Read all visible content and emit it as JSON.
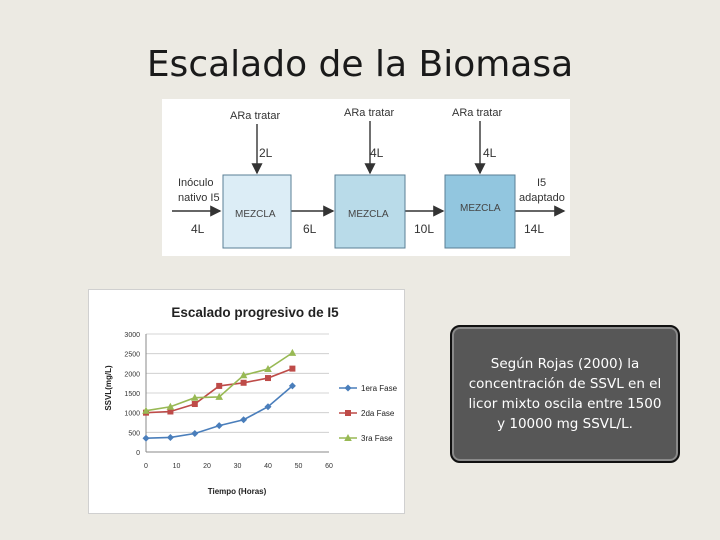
{
  "slide": {
    "title": "Escalado de la Biomasa"
  },
  "diagram": {
    "inputs": [
      {
        "label": "ARa tratar",
        "volume": "2L"
      },
      {
        "label": "ARa tratar",
        "volume": "4L"
      },
      {
        "label": "ARa tratar",
        "volume": "4L"
      }
    ],
    "left_label_line1": "Inóculo",
    "left_label_line2": "nativo I5",
    "right_label_line1": "I5",
    "right_label_line2": "adaptado",
    "boxes": [
      "MEZCLA",
      "MEZCLA",
      "MEZCLA"
    ],
    "box_colors": [
      "#dcedf6",
      "#b9dbe9",
      "#92c6df"
    ],
    "flow_volumes": [
      "4L",
      "6L",
      "10L",
      "14L"
    ]
  },
  "chart_data": {
    "type": "line",
    "title": "Escalado progresivo de I5",
    "xlabel": "Tiempo (Horas)",
    "ylabel": "SSVL(mg/L)",
    "xlim": [
      0,
      60
    ],
    "ylim": [
      0,
      3000
    ],
    "xticks": [
      "0",
      "10",
      "20",
      "30",
      "40",
      "50",
      "60"
    ],
    "yticks": [
      "0",
      "500",
      "1000",
      "1500",
      "2000",
      "2500",
      "3000"
    ],
    "grid": true,
    "legend_position": "right",
    "series": [
      {
        "name": "1era Fase",
        "color": "#4a7ebb",
        "marker": "diamond",
        "x": [
          0,
          8,
          16,
          24,
          32,
          40,
          48
        ],
        "y": [
          350,
          370,
          470,
          670,
          820,
          1150,
          1680
        ]
      },
      {
        "name": "2da Fase",
        "color": "#be4b48",
        "marker": "square",
        "x": [
          0,
          8,
          16,
          24,
          32,
          40,
          48
        ],
        "y": [
          1000,
          1030,
          1220,
          1680,
          1760,
          1880,
          2120
        ]
      },
      {
        "name": "3ra Fase",
        "color": "#98b954",
        "marker": "triangle",
        "x": [
          0,
          8,
          16,
          24,
          32,
          40,
          48
        ],
        "y": [
          1050,
          1150,
          1380,
          1400,
          1950,
          2110,
          2520
        ]
      }
    ]
  },
  "note": {
    "text": "Según Rojas (2000) la concentración de SSVL en el licor mixto oscila entre 1500 y 10000 mg SSVL/L."
  }
}
